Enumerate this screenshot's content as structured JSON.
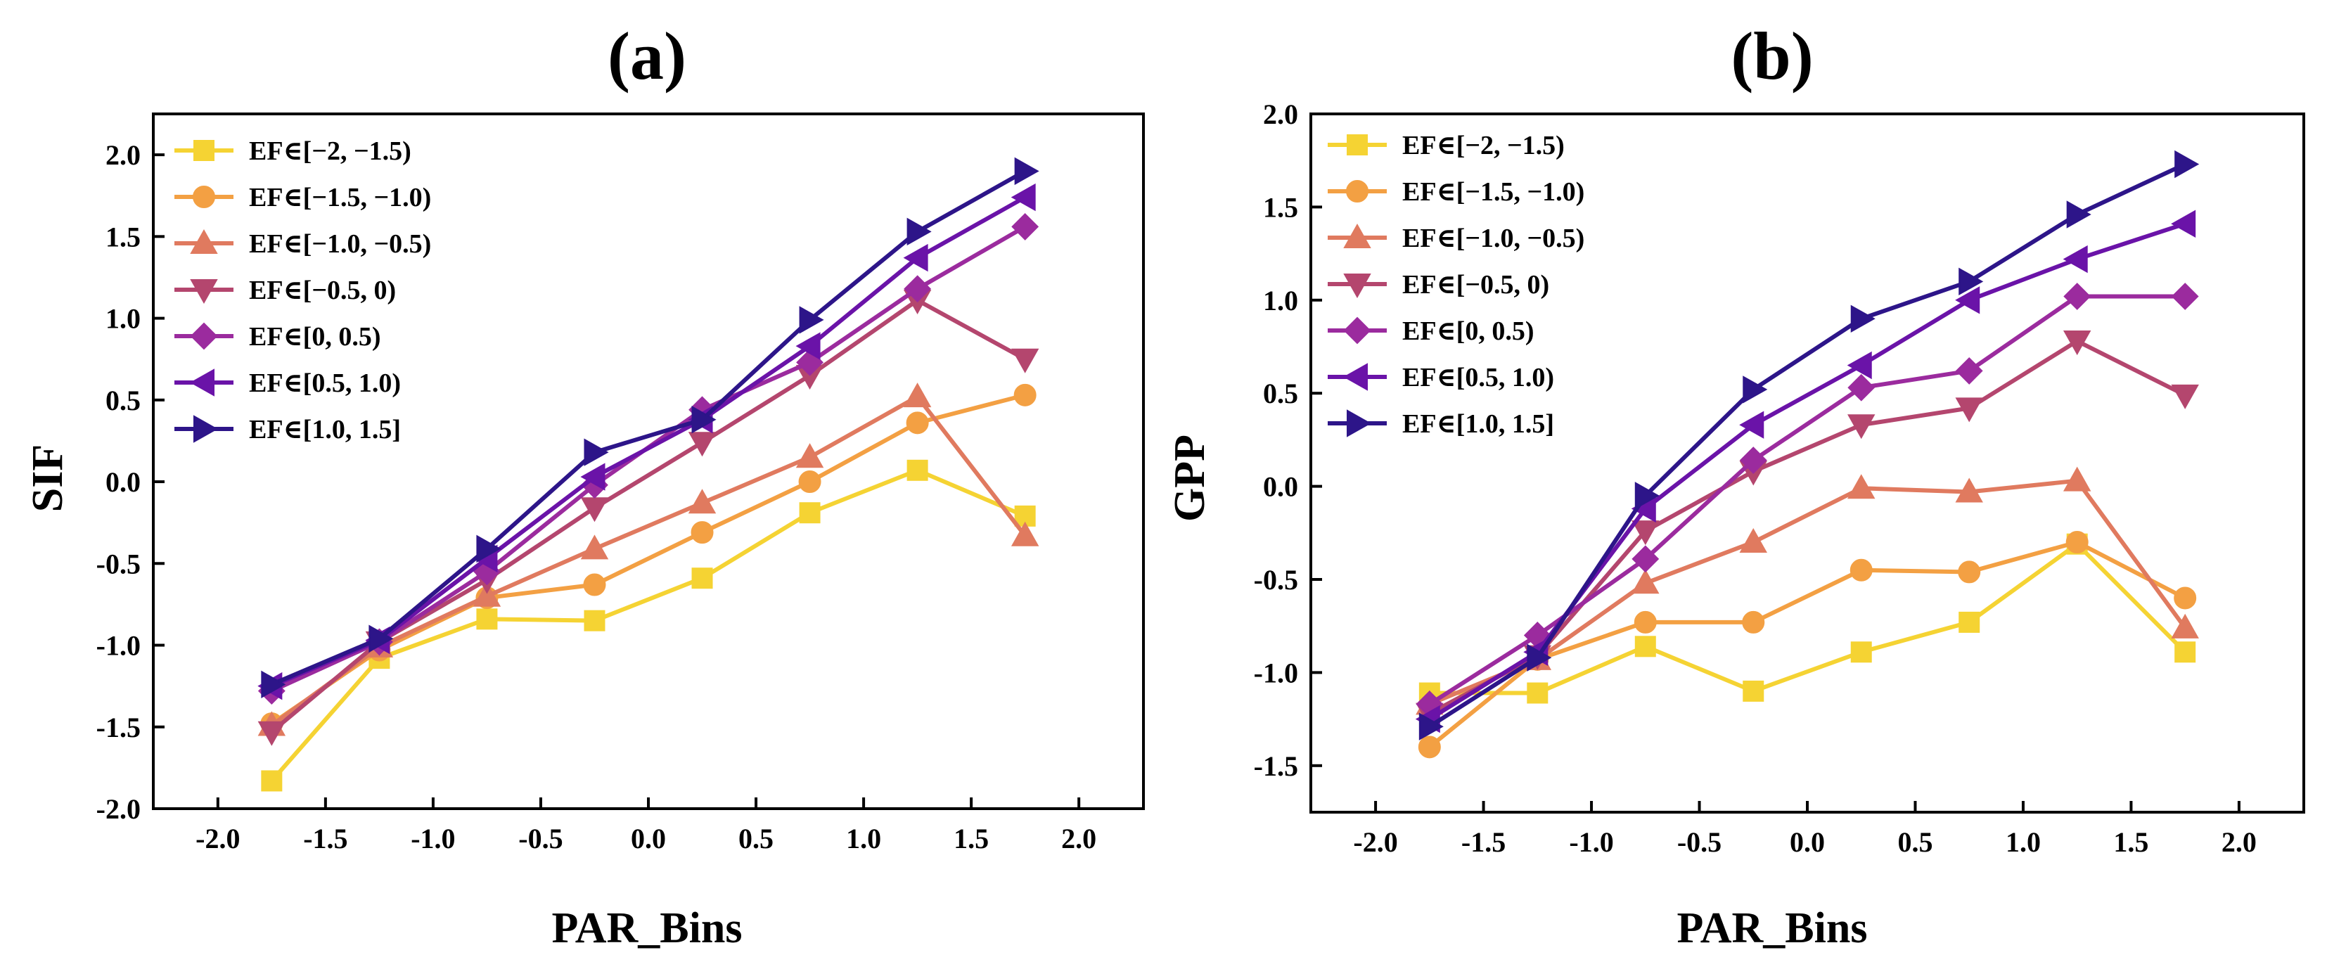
{
  "chart_data": [
    {
      "type": "line",
      "title": "(a)",
      "xlabel": "PAR_Bins",
      "ylabel": "SIF",
      "xlim": [
        -2.3,
        2.3
      ],
      "ylim": [
        -2.0,
        2.25
      ],
      "xticks": [
        "-2.0",
        "-1.5",
        "-1.0",
        "-0.5",
        "0.0",
        "0.5",
        "1.0",
        "1.5",
        "2.0"
      ],
      "yticks": [
        "-2.0",
        "-1.5",
        "-1.0",
        "-0.5",
        "0.0",
        "0.5",
        "1.0",
        "1.5",
        "2.0"
      ],
      "legend_position": "top-left",
      "x": [
        -1.75,
        -1.25,
        -0.75,
        -0.25,
        0.25,
        0.75,
        1.25,
        1.75
      ],
      "series": [
        {
          "name": "EF∈[−2, −1.5)",
          "color": "#f5d333",
          "marker": "square",
          "values": [
            -1.83,
            -1.08,
            -0.84,
            -0.85,
            -0.59,
            -0.19,
            0.07,
            -0.21
          ]
        },
        {
          "name": "EF∈[−1.5, −1.0)",
          "color": "#f3a043",
          "marker": "circle",
          "values": [
            -1.48,
            -1.03,
            -0.71,
            -0.63,
            -0.31,
            0.0,
            0.36,
            0.53
          ]
        },
        {
          "name": "EF∈[−1.0, −0.5)",
          "color": "#e07a5f",
          "marker": "triangle-up",
          "values": [
            -1.49,
            -1.01,
            -0.7,
            -0.41,
            -0.13,
            0.15,
            0.52,
            -0.33
          ]
        },
        {
          "name": "EF∈[−0.5,  0)",
          "color": "#b4466e",
          "marker": "triangle-down",
          "values": [
            -1.53,
            -0.98,
            -0.6,
            -0.16,
            0.24,
            0.65,
            1.11,
            0.75
          ]
        },
        {
          "name": "EF∈[0, 0.5)",
          "color": "#9b2b9e",
          "marker": "diamond",
          "values": [
            -1.28,
            -0.98,
            -0.55,
            -0.02,
            0.44,
            0.73,
            1.18,
            1.56
          ]
        },
        {
          "name": "EF∈[0.5, 1.0)",
          "color": "#6a13a8",
          "marker": "triangle-left",
          "values": [
            -1.25,
            -0.97,
            -0.47,
            0.03,
            0.38,
            0.83,
            1.37,
            1.74
          ]
        },
        {
          "name": "EF∈[1.0, 1.5]",
          "color": "#2d1589",
          "marker": "triangle-right",
          "values": [
            -1.24,
            -0.96,
            -0.41,
            0.18,
            0.38,
            0.99,
            1.53,
            1.9
          ]
        }
      ]
    },
    {
      "type": "line",
      "title": "(b)",
      "xlabel": "PAR_Bins",
      "ylabel": "GPP",
      "xlim": [
        -2.3,
        2.3
      ],
      "ylim": [
        -1.75,
        2.0
      ],
      "xticks": [
        "-2.0",
        "-1.5",
        "-1.0",
        "-0.5",
        "0.0",
        "0.5",
        "1.0",
        "1.5",
        "2.0"
      ],
      "yticks": [
        "-1.5",
        "-1.0",
        "-0.5",
        "0.0",
        "0.5",
        "1.0",
        "1.5",
        "2.0"
      ],
      "legend_position": "top-left",
      "x": [
        -1.75,
        -1.25,
        -0.75,
        -0.25,
        0.25,
        0.75,
        1.25,
        1.75
      ],
      "series": [
        {
          "name": "EF∈[−2, −1.5)",
          "color": "#f5d333",
          "marker": "square",
          "values": [
            -1.11,
            -1.11,
            -0.86,
            -1.1,
            -0.89,
            -0.73,
            -0.31,
            -0.89
          ]
        },
        {
          "name": "EF∈[−1.5, −1.0)",
          "color": "#f3a043",
          "marker": "circle",
          "values": [
            -1.4,
            -0.93,
            -0.73,
            -0.73,
            -0.45,
            -0.46,
            -0.3,
            -0.6
          ]
        },
        {
          "name": "EF∈[−1.0, −0.5)",
          "color": "#e07a5f",
          "marker": "triangle-up",
          "values": [
            -1.17,
            -0.93,
            -0.52,
            -0.3,
            -0.01,
            -0.03,
            0.03,
            -0.76
          ]
        },
        {
          "name": "EF∈[−0.5,  0)",
          "color": "#b4466e",
          "marker": "triangle-down",
          "values": [
            -1.22,
            -0.91,
            -0.24,
            0.08,
            0.33,
            0.42,
            0.78,
            0.49
          ]
        },
        {
          "name": "EF∈[0, 0.5)",
          "color": "#9b2b9e",
          "marker": "diamond",
          "values": [
            -1.17,
            -0.8,
            -0.39,
            0.14,
            0.53,
            0.62,
            1.02,
            1.02
          ]
        },
        {
          "name": "EF∈[0.5, 1.0)",
          "color": "#6a13a8",
          "marker": "triangle-left",
          "values": [
            -1.25,
            -0.89,
            -0.12,
            0.33,
            0.65,
            1.0,
            1.22,
            1.41
          ]
        },
        {
          "name": "EF∈[1.0, 1.5]",
          "color": "#2d1589",
          "marker": "triangle-right",
          "values": [
            -1.29,
            -0.92,
            -0.05,
            0.52,
            0.9,
            1.1,
            1.46,
            1.73
          ]
        }
      ]
    }
  ]
}
